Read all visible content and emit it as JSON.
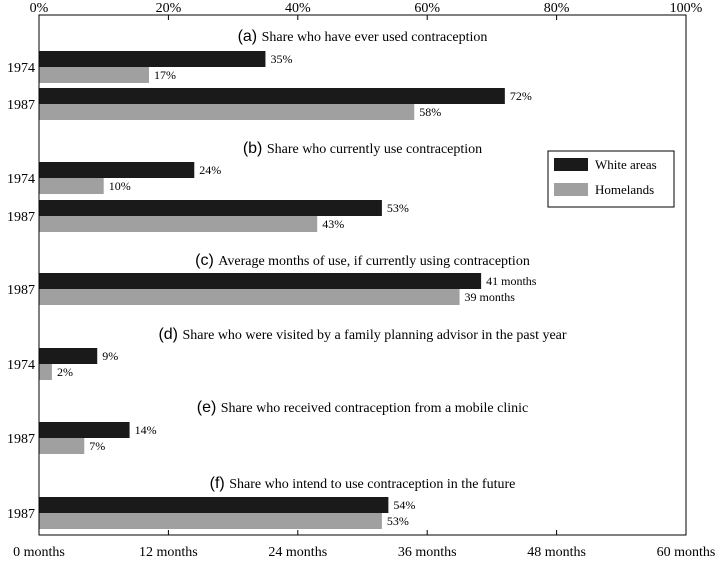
{
  "chart_data": {
    "type": "bar",
    "orientation": "horizontal",
    "top_axis": {
      "ticks": [
        "0%",
        "20%",
        "40%",
        "60%",
        "80%",
        "100%"
      ],
      "range": [
        0,
        100
      ]
    },
    "bottom_axis": {
      "ticks": [
        "0 months",
        "12 months",
        "24 months",
        "36 months",
        "48 months",
        "60 months"
      ],
      "range": [
        0,
        60
      ]
    },
    "legend": {
      "position": "right",
      "entries": [
        {
          "label": "White areas",
          "color": "#1a1a1a"
        },
        {
          "label": "Homelands",
          "color": "#a0a0a0"
        }
      ]
    },
    "panels": [
      {
        "letter": "(a)",
        "title": "Share who have ever used contraception",
        "unit": "percent",
        "groups": [
          {
            "year": "1974",
            "values": [
              35,
              17
            ],
            "labels": [
              "35%",
              "17%"
            ]
          },
          {
            "year": "1987",
            "values": [
              72,
              58
            ],
            "labels": [
              "72%",
              "58%"
            ]
          }
        ]
      },
      {
        "letter": "(b)",
        "title": "Share who currently use contraception",
        "unit": "percent",
        "groups": [
          {
            "year": "1974",
            "values": [
              24,
              10
            ],
            "labels": [
              "24%",
              "10%"
            ]
          },
          {
            "year": "1987",
            "values": [
              53,
              43
            ],
            "labels": [
              "53%",
              "43%"
            ]
          }
        ]
      },
      {
        "letter": "(c)",
        "title": "Average months of use, if currently using contraception",
        "unit": "months",
        "groups": [
          {
            "year": "1987",
            "values": [
              41,
              39
            ],
            "labels": [
              "41 months",
              "39 months"
            ]
          }
        ]
      },
      {
        "letter": "(d)",
        "title": "Share who were visited by a family planning advisor in the past year",
        "unit": "percent",
        "groups": [
          {
            "year": "1974",
            "values": [
              9,
              2
            ],
            "labels": [
              "9%",
              "2%"
            ]
          }
        ]
      },
      {
        "letter": "(e)",
        "title": "Share who received contraception from a mobile clinic",
        "unit": "percent",
        "groups": [
          {
            "year": "1987",
            "values": [
              14,
              7
            ],
            "labels": [
              "14%",
              "7%"
            ]
          }
        ]
      },
      {
        "letter": "(f)",
        "title": "Share who intend to use contraception in the future",
        "unit": "percent",
        "groups": [
          {
            "year": "1987",
            "values": [
              54,
              53
            ],
            "labels": [
              "54%",
              "53%"
            ]
          }
        ]
      }
    ]
  }
}
